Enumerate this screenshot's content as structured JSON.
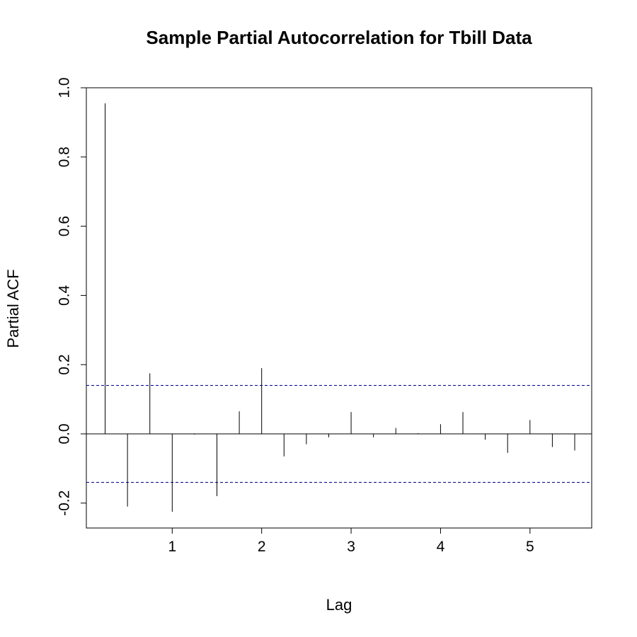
{
  "chart_data": {
    "type": "bar",
    "title": "Sample Partial Autocorrelation for Tbill Data",
    "xlabel": "Lag",
    "ylabel": "Partial ACF",
    "xlim": [
      0.04,
      5.69
    ],
    "ylim": [
      -0.27,
      1.0
    ],
    "x_ticks": [
      1,
      2,
      3,
      4,
      5
    ],
    "x_tick_labels": [
      "1",
      "2",
      "3",
      "4",
      "5"
    ],
    "y_ticks": [
      -0.2,
      0.0,
      0.2,
      0.4,
      0.6,
      0.8,
      1.0
    ],
    "y_tick_labels": [
      "-0.2",
      "0.0",
      "0.2",
      "0.4",
      "0.6",
      "0.8",
      "1.0"
    ],
    "confidence_bounds": [
      0.14,
      -0.14
    ],
    "zero_line": true,
    "grid": false,
    "lags": [
      0.25,
      0.5,
      0.75,
      1.0,
      1.25,
      1.5,
      1.75,
      2.0,
      2.25,
      2.5,
      2.75,
      3.0,
      3.25,
      3.5,
      3.75,
      4.0,
      4.25,
      4.5,
      4.75,
      5.0,
      5.25,
      5.5
    ],
    "values": [
      0.955,
      -0.21,
      0.175,
      -0.225,
      -0.002,
      -0.18,
      0.065,
      0.19,
      -0.065,
      -0.03,
      -0.01,
      0.063,
      -0.01,
      0.017,
      0.002,
      0.028,
      0.063,
      -0.017,
      -0.055,
      0.04,
      -0.038,
      -0.048
    ]
  }
}
